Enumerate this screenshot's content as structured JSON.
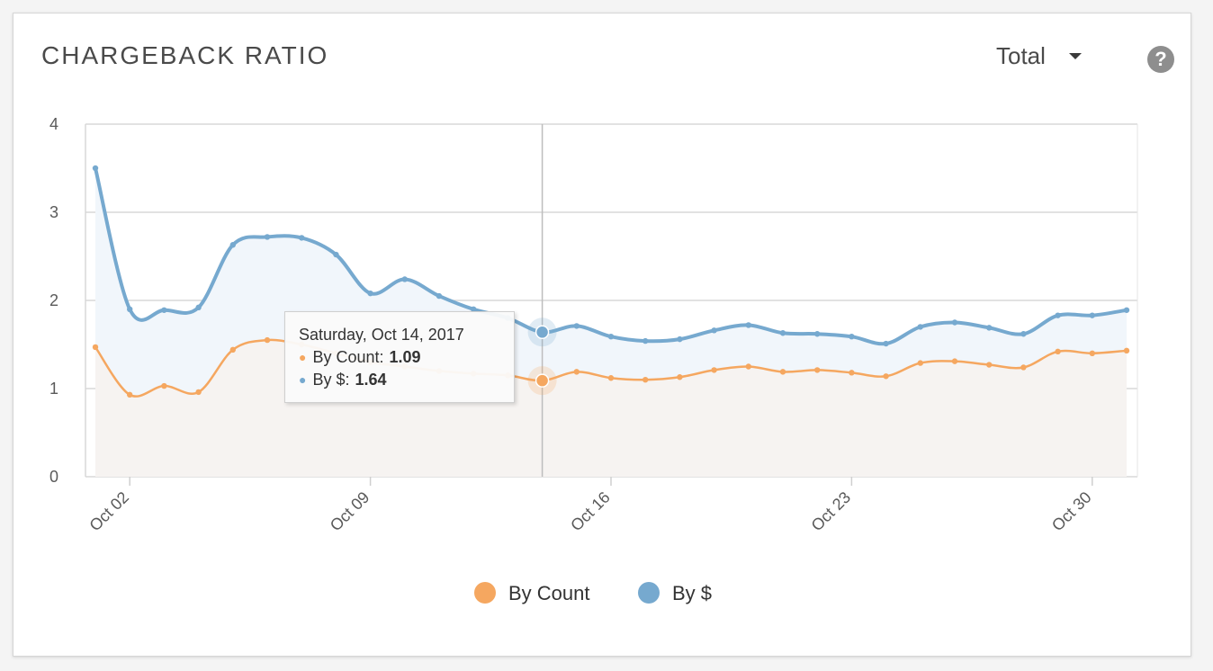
{
  "header": {
    "title": "CHARGEBACK RATIO",
    "dropdown_value": "Total",
    "help_glyph": "?"
  },
  "tooltip": {
    "date": "Saturday, Oct 14, 2017",
    "count_label": "By Count:",
    "count_value": "1.09",
    "dollar_label": "By $:",
    "dollar_value": "1.64"
  },
  "chart_data": {
    "type": "area",
    "x_tick_labels": [
      "Oct 02",
      "Oct 09",
      "Oct 16",
      "Oct 23",
      "Oct 30"
    ],
    "x_tick_days": [
      2,
      9,
      16,
      23,
      30
    ],
    "ylim": [
      0,
      4
    ],
    "yticks": [
      0,
      1,
      2,
      3,
      4
    ],
    "grid": true,
    "legend_position": "bottom-center",
    "x": [
      "Oct 01",
      "Oct 02",
      "Oct 03",
      "Oct 04",
      "Oct 05",
      "Oct 06",
      "Oct 07",
      "Oct 08",
      "Oct 09",
      "Oct 10",
      "Oct 11",
      "Oct 12",
      "Oct 13",
      "Oct 14",
      "Oct 15",
      "Oct 16",
      "Oct 17",
      "Oct 18",
      "Oct 19",
      "Oct 20",
      "Oct 21",
      "Oct 22",
      "Oct 23",
      "Oct 24",
      "Oct 25",
      "Oct 26",
      "Oct 27",
      "Oct 28",
      "Oct 29",
      "Oct 30",
      "Oct 31"
    ],
    "highlight_x": "Oct 14",
    "series": [
      {
        "name": "By Count",
        "color": "#f5a760",
        "fill": "#f6f3f1",
        "values": [
          1.47,
          0.93,
          1.03,
          0.96,
          1.44,
          1.55,
          1.5,
          1.4,
          1.3,
          1.25,
          1.2,
          1.17,
          1.15,
          1.09,
          1.19,
          1.12,
          1.1,
          1.13,
          1.21,
          1.25,
          1.19,
          1.21,
          1.18,
          1.14,
          1.29,
          1.31,
          1.27,
          1.24,
          1.42,
          1.4,
          1.43
        ]
      },
      {
        "name": "By $",
        "color": "#76a9cf",
        "fill": "#f1f6fb",
        "values": [
          3.5,
          1.9,
          1.89,
          1.92,
          2.63,
          2.72,
          2.71,
          2.52,
          2.08,
          2.24,
          2.05,
          1.9,
          1.8,
          1.64,
          1.71,
          1.59,
          1.54,
          1.56,
          1.66,
          1.72,
          1.63,
          1.62,
          1.59,
          1.51,
          1.7,
          1.75,
          1.69,
          1.62,
          1.83,
          1.83,
          1.89
        ]
      }
    ]
  }
}
